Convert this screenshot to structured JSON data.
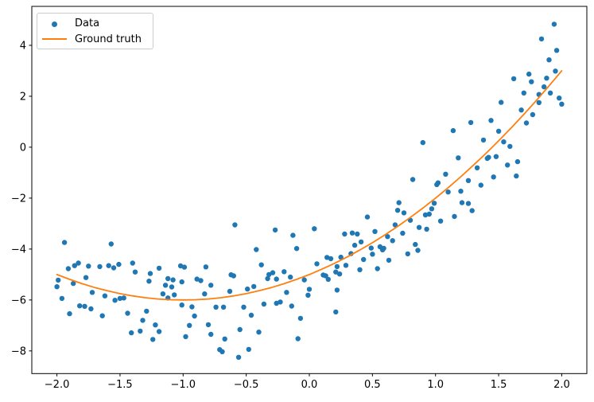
{
  "figure": {
    "background": "#ffffff",
    "spine_color": "#000000"
  },
  "chart_data": {
    "type": "scatter",
    "title": "",
    "xlabel": "",
    "ylabel": "",
    "grid": false,
    "xlim": [
      -2.199,
      2.199
    ],
    "ylim": [
      -8.89,
      5.53
    ],
    "xticks": {
      "values": [
        -2.0,
        -1.5,
        -1.0,
        -0.5,
        0.0,
        0.5,
        1.0,
        1.5,
        2.0
      ],
      "labels": [
        "−2.0",
        "−1.5",
        "−1.0",
        "−0.5",
        "0.0",
        "0.5",
        "1.0",
        "1.5",
        "2.0"
      ]
    },
    "yticks": {
      "values": [
        -8,
        -6,
        -4,
        -2,
        0,
        2,
        4
      ],
      "labels": [
        "−8",
        "−6",
        "−4",
        "−2",
        "0",
        "2",
        "4"
      ]
    },
    "legend": {
      "position": "upper-left",
      "entries": [
        {
          "label": "Data",
          "marker": "point",
          "color": "#1f77b4"
        },
        {
          "label": "Ground truth",
          "marker": "line",
          "color": "#ff7f0e"
        }
      ]
    },
    "series": [
      {
        "name": "Data",
        "type": "scatter",
        "color": "#1f77b4",
        "marker_size": 3.2,
        "points": [
          [
            -1.94,
            -3.74
          ],
          [
            -1.57,
            -3.8
          ],
          [
            -1.86,
            -4.65
          ],
          [
            -1.83,
            -4.55
          ],
          [
            -1.91,
            -4.77
          ],
          [
            -1.75,
            -4.67
          ],
          [
            -1.66,
            -4.69
          ],
          [
            -1.59,
            -4.65
          ],
          [
            -1.55,
            -4.74
          ],
          [
            -1.51,
            -4.6
          ],
          [
            -1.4,
            -4.55
          ],
          [
            -1.38,
            -4.9
          ],
          [
            -1.99,
            -5.22
          ],
          [
            -2.0,
            -5.48
          ],
          [
            -1.87,
            -5.35
          ],
          [
            -1.77,
            -5.12
          ],
          [
            -1.26,
            -4.96
          ],
          [
            -1.19,
            -4.75
          ],
          [
            -1.27,
            -5.26
          ],
          [
            -1.12,
            -5.16
          ],
          [
            -1.08,
            -5.21
          ],
          [
            -1.14,
            -5.42
          ],
          [
            -1.09,
            -5.49
          ],
          [
            -1.01,
            -5.29
          ],
          [
            -1.02,
            -4.66
          ],
          [
            -0.99,
            -4.71
          ],
          [
            -1.96,
            -5.94
          ],
          [
            -1.72,
            -5.7
          ],
          [
            -1.62,
            -5.84
          ],
          [
            -1.54,
            -6.01
          ],
          [
            -1.5,
            -5.94
          ],
          [
            -1.47,
            -5.92
          ],
          [
            -1.82,
            -6.23
          ],
          [
            -1.78,
            -6.25
          ],
          [
            -1.73,
            -6.35
          ],
          [
            -1.9,
            -6.54
          ],
          [
            -1.64,
            -6.62
          ],
          [
            -1.44,
            -6.52
          ],
          [
            -1.29,
            -6.44
          ],
          [
            -1.16,
            -5.76
          ],
          [
            -1.12,
            -5.92
          ],
          [
            -1.07,
            -5.8
          ],
          [
            -1.01,
            -6.2
          ],
          [
            -0.93,
            -6.27
          ],
          [
            -1.32,
            -6.8
          ],
          [
            -1.22,
            -6.98
          ],
          [
            -1.19,
            -7.24
          ],
          [
            -1.41,
            -7.29
          ],
          [
            -1.34,
            -7.22
          ],
          [
            -1.24,
            -7.55
          ],
          [
            -0.95,
            -7.0
          ],
          [
            -0.98,
            -7.44
          ],
          [
            -0.59,
            -3.05
          ],
          [
            -0.27,
            -3.25
          ],
          [
            -0.13,
            -3.46
          ],
          [
            -0.42,
            -4.02
          ],
          [
            -0.1,
            -3.98
          ],
          [
            0.04,
            -3.2
          ],
          [
            -0.82,
            -4.7
          ],
          [
            -0.38,
            -4.62
          ],
          [
            -0.89,
            -5.18
          ],
          [
            -0.86,
            -5.24
          ],
          [
            -0.78,
            -5.42
          ],
          [
            -0.83,
            -5.76
          ],
          [
            -0.62,
            -5.01
          ],
          [
            -0.6,
            -5.05
          ],
          [
            -0.63,
            -5.66
          ],
          [
            -0.49,
            -5.57
          ],
          [
            -0.44,
            -5.47
          ],
          [
            -0.33,
            -5.16
          ],
          [
            -0.32,
            -5.0
          ],
          [
            -0.29,
            -4.93
          ],
          [
            -0.26,
            -5.18
          ],
          [
            -0.2,
            -4.89
          ],
          [
            -0.15,
            -5.1
          ],
          [
            -0.18,
            -5.7
          ],
          [
            -0.04,
            -5.21
          ],
          [
            0.0,
            -5.58
          ],
          [
            -0.01,
            -5.81
          ],
          [
            0.11,
            -5.02
          ],
          [
            0.13,
            -5.05
          ],
          [
            0.15,
            -5.19
          ],
          [
            0.21,
            -4.9
          ],
          [
            0.17,
            -4.38
          ],
          [
            0.14,
            -4.33
          ],
          [
            0.22,
            -4.69
          ],
          [
            0.06,
            -4.58
          ],
          [
            0.22,
            -5.61
          ],
          [
            -0.74,
            -6.28
          ],
          [
            -0.68,
            -6.28
          ],
          [
            -0.52,
            -6.28
          ],
          [
            -0.36,
            -6.16
          ],
          [
            -0.26,
            -6.13
          ],
          [
            -0.23,
            -6.08
          ],
          [
            -0.14,
            -6.24
          ],
          [
            -0.91,
            -6.63
          ],
          [
            -0.8,
            -6.97
          ],
          [
            -0.78,
            -7.35
          ],
          [
            -0.67,
            -7.53
          ],
          [
            -0.71,
            -7.95
          ],
          [
            -0.69,
            -8.03
          ],
          [
            -0.56,
            -8.25
          ],
          [
            -0.48,
            -7.94
          ],
          [
            -0.46,
            -6.6
          ],
          [
            -0.55,
            -7.16
          ],
          [
            -0.4,
            -7.26
          ],
          [
            -0.07,
            -6.72
          ],
          [
            -0.09,
            -7.52
          ],
          [
            0.21,
            -6.47
          ],
          [
            0.25,
            -4.32
          ],
          [
            0.24,
            -4.98
          ],
          [
            1.01,
            -1.47
          ],
          [
            1.1,
            -1.76
          ],
          [
            1.2,
            -1.73
          ],
          [
            0.71,
            -2.18
          ],
          [
            0.7,
            -2.48
          ],
          [
            0.75,
            -2.58
          ],
          [
            0.99,
            -2.2
          ],
          [
            0.97,
            -2.42
          ],
          [
            0.92,
            -2.66
          ],
          [
            0.95,
            -2.63
          ],
          [
            1.21,
            -2.18
          ],
          [
            1.26,
            -2.21
          ],
          [
            1.29,
            -2.49
          ],
          [
            1.15,
            -2.72
          ],
          [
            1.04,
            -2.9
          ],
          [
            0.46,
            -2.74
          ],
          [
            0.8,
            -2.87
          ],
          [
            0.68,
            -3.05
          ],
          [
            0.87,
            -3.15
          ],
          [
            0.93,
            -3.22
          ],
          [
            0.52,
            -3.31
          ],
          [
            0.74,
            -3.38
          ],
          [
            0.62,
            -3.51
          ],
          [
            0.28,
            -3.41
          ],
          [
            0.34,
            -3.37
          ],
          [
            0.38,
            -3.41
          ],
          [
            0.36,
            -3.85
          ],
          [
            0.41,
            -3.72
          ],
          [
            0.33,
            -4.18
          ],
          [
            0.49,
            -3.96
          ],
          [
            0.5,
            -4.2
          ],
          [
            0.56,
            -3.91
          ],
          [
            0.58,
            -4.03
          ],
          [
            0.59,
            -3.97
          ],
          [
            0.66,
            -3.67
          ],
          [
            0.63,
            -4.44
          ],
          [
            0.84,
            -3.82
          ],
          [
            0.86,
            -4.05
          ],
          [
            0.78,
            -4.19
          ],
          [
            0.43,
            -4.41
          ],
          [
            0.29,
            -4.64
          ],
          [
            0.4,
            -4.81
          ],
          [
            0.54,
            -4.77
          ],
          [
            1.14,
            0.65
          ],
          [
            0.9,
            0.18
          ],
          [
            1.18,
            -0.42
          ],
          [
            1.08,
            -1.06
          ],
          [
            0.82,
            -1.27
          ],
          [
            1.02,
            -1.4
          ],
          [
            1.26,
            -1.31
          ],
          [
            1.94,
            4.83
          ],
          [
            1.84,
            4.25
          ],
          [
            1.96,
            3.8
          ],
          [
            1.9,
            3.43
          ],
          [
            1.88,
            2.71
          ],
          [
            1.95,
            2.99
          ],
          [
            1.74,
            2.87
          ],
          [
            1.76,
            2.57
          ],
          [
            1.62,
            2.69
          ],
          [
            1.86,
            2.37
          ],
          [
            1.82,
            2.07
          ],
          [
            1.91,
            2.13
          ],
          [
            1.82,
            1.75
          ],
          [
            1.98,
            1.93
          ],
          [
            2.0,
            1.69
          ],
          [
            1.7,
            2.13
          ],
          [
            1.52,
            1.76
          ],
          [
            1.68,
            1.46
          ],
          [
            1.77,
            1.28
          ],
          [
            1.72,
            0.95
          ],
          [
            1.28,
            0.97
          ],
          [
            1.44,
            1.05
          ],
          [
            1.5,
            0.63
          ],
          [
            1.38,
            0.28
          ],
          [
            1.54,
            0.21
          ],
          [
            1.59,
            0.03
          ],
          [
            1.42,
            -0.4
          ],
          [
            1.48,
            -0.37
          ],
          [
            1.41,
            -0.44
          ],
          [
            1.33,
            -0.81
          ],
          [
            1.57,
            -0.7
          ],
          [
            1.65,
            -0.57
          ],
          [
            1.46,
            -1.17
          ],
          [
            1.36,
            -1.49
          ],
          [
            1.64,
            -1.13
          ]
        ]
      },
      {
        "name": "Ground truth",
        "type": "line",
        "color": "#ff7f0e",
        "line_width": 1.8,
        "formula": "y = (x + 1)^2 - 6",
        "points": [
          [
            -2.0,
            -5.0
          ],
          [
            -1.9,
            -5.19
          ],
          [
            -1.8,
            -5.36
          ],
          [
            -1.7,
            -5.51
          ],
          [
            -1.6,
            -5.64
          ],
          [
            -1.5,
            -5.75
          ],
          [
            -1.4,
            -5.84
          ],
          [
            -1.3,
            -5.91
          ],
          [
            -1.2,
            -5.96
          ],
          [
            -1.1,
            -5.99
          ],
          [
            -1.0,
            -6.0
          ],
          [
            -0.9,
            -5.99
          ],
          [
            -0.8,
            -5.96
          ],
          [
            -0.7,
            -5.91
          ],
          [
            -0.6,
            -5.84
          ],
          [
            -0.5,
            -5.75
          ],
          [
            -0.4,
            -5.64
          ],
          [
            -0.3,
            -5.51
          ],
          [
            -0.2,
            -5.36
          ],
          [
            -0.1,
            -5.19
          ],
          [
            0.0,
            -5.0
          ],
          [
            0.1,
            -4.79
          ],
          [
            0.2,
            -4.56
          ],
          [
            0.3,
            -4.31
          ],
          [
            0.4,
            -4.04
          ],
          [
            0.5,
            -3.75
          ],
          [
            0.6,
            -3.44
          ],
          [
            0.7,
            -3.11
          ],
          [
            0.8,
            -2.76
          ],
          [
            0.9,
            -2.39
          ],
          [
            1.0,
            -2.0
          ],
          [
            1.1,
            -1.59
          ],
          [
            1.2,
            -1.16
          ],
          [
            1.3,
            -0.71
          ],
          [
            1.4,
            -0.24
          ],
          [
            1.5,
            0.25
          ],
          [
            1.6,
            0.76
          ],
          [
            1.7,
            1.29
          ],
          [
            1.8,
            1.84
          ],
          [
            1.9,
            2.41
          ],
          [
            2.0,
            3.0
          ]
        ]
      }
    ]
  }
}
